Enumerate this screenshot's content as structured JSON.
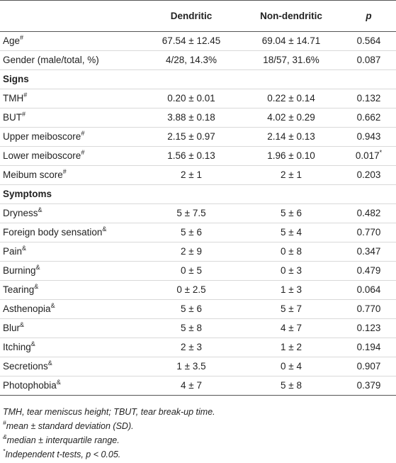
{
  "header": {
    "col0": "",
    "col1": "Dendritic",
    "col2": "Non-dendritic",
    "col3": "p"
  },
  "rows": [
    {
      "type": "data",
      "label": "Age",
      "sup": "#",
      "dendritic": "67.54 ± 12.45",
      "non_dendritic": "69.04 ± 14.71",
      "p": "0.564",
      "p_sup": ""
    },
    {
      "type": "data",
      "label": "Gender (male/total, %)",
      "sup": "",
      "dendritic": "4/28, 14.3%",
      "non_dendritic": "18/57, 31.6%",
      "p": "0.087",
      "p_sup": ""
    },
    {
      "type": "section",
      "label": "Signs"
    },
    {
      "type": "data",
      "label": "TMH",
      "sup": "#",
      "dendritic": "0.20 ± 0.01",
      "non_dendritic": "0.22 ± 0.14",
      "p": "0.132",
      "p_sup": ""
    },
    {
      "type": "data",
      "label": "BUT",
      "sup": "#",
      "dendritic": "3.88 ± 0.18",
      "non_dendritic": "4.02 ± 0.29",
      "p": "0.662",
      "p_sup": ""
    },
    {
      "type": "data",
      "label": "Upper meiboscore",
      "sup": "#",
      "dendritic": "2.15 ± 0.97",
      "non_dendritic": "2.14 ± 0.13",
      "p": "0.943",
      "p_sup": ""
    },
    {
      "type": "data",
      "label": "Lower meiboscore",
      "sup": "#",
      "dendritic": "1.56 ± 0.13",
      "non_dendritic": "1.96 ± 0.10",
      "p": "0.017",
      "p_sup": "*"
    },
    {
      "type": "data",
      "label": "Meibum score",
      "sup": "#",
      "dendritic": "2 ± 1",
      "non_dendritic": "2 ± 1",
      "p": "0.203",
      "p_sup": ""
    },
    {
      "type": "section",
      "label": "Symptoms"
    },
    {
      "type": "data",
      "label": "Dryness",
      "sup": "&",
      "dendritic": "5 ± 7.5",
      "non_dendritic": "5 ± 6",
      "p": "0.482",
      "p_sup": ""
    },
    {
      "type": "data",
      "label": "Foreign body sensation",
      "sup": "&",
      "dendritic": "5 ± 6",
      "non_dendritic": "5 ± 4",
      "p": "0.770",
      "p_sup": ""
    },
    {
      "type": "data",
      "label": "Pain",
      "sup": "&",
      "dendritic": "2 ± 9",
      "non_dendritic": "0 ± 8",
      "p": "0.347",
      "p_sup": ""
    },
    {
      "type": "data",
      "label": "Burning",
      "sup": "&",
      "dendritic": "0 ± 5",
      "non_dendritic": "0 ± 3",
      "p": "0.479",
      "p_sup": ""
    },
    {
      "type": "data",
      "label": "Tearing",
      "sup": "&",
      "dendritic": "0 ± 2.5",
      "non_dendritic": "1 ± 3",
      "p": "0.064",
      "p_sup": ""
    },
    {
      "type": "data",
      "label": "Asthenopia",
      "sup": "&",
      "dendritic": "5 ± 6",
      "non_dendritic": "5 ± 7",
      "p": "0.770",
      "p_sup": ""
    },
    {
      "type": "data",
      "label": "Blur",
      "sup": "&",
      "dendritic": "5 ± 8",
      "non_dendritic": "4 ± 7",
      "p": "0.123",
      "p_sup": ""
    },
    {
      "type": "data",
      "label": "Itching",
      "sup": "&",
      "dendritic": "2 ± 3",
      "non_dendritic": "1 ± 2",
      "p": "0.194",
      "p_sup": ""
    },
    {
      "type": "data",
      "label": "Secretions",
      "sup": "&",
      "dendritic": "1 ± 3.5",
      "non_dendritic": "0 ± 4",
      "p": "0.907",
      "p_sup": ""
    },
    {
      "type": "data",
      "label": "Photophobia",
      "sup": "&",
      "dendritic": "4 ± 7",
      "non_dendritic": "5 ± 8",
      "p": "0.379",
      "p_sup": ""
    }
  ],
  "footnotes": [
    {
      "mark": "",
      "text": "TMH, tear meniscus height; TBUT, tear break-up time."
    },
    {
      "mark": "#",
      "text": "mean ± standard deviation (SD)."
    },
    {
      "mark": "&",
      "text": "median ± interquartile range."
    },
    {
      "mark": "*",
      "text": "Independent t-tests, p < 0.05."
    }
  ]
}
